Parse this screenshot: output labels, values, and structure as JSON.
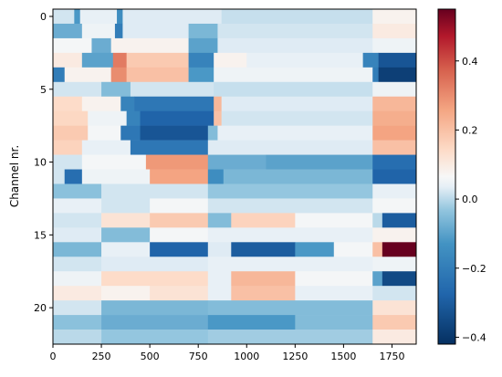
{
  "chart_data": {
    "type": "heatmap",
    "title": "",
    "xlabel": "",
    "ylabel": "Channel nr.",
    "xlim": [
      0,
      1875
    ],
    "ylim": [
      22.5,
      -0.5
    ],
    "x_ticks": [
      0,
      250,
      500,
      750,
      1000,
      1250,
      1500,
      1750
    ],
    "y_ticks": [
      0,
      5,
      10,
      15,
      20
    ],
    "colorbar": {
      "colormap": "RdBu_r",
      "vmin": -0.42,
      "vmax": 0.55,
      "ticks": [
        0.4,
        0.2,
        0.0,
        -0.2,
        -0.4
      ],
      "tick_labels": [
        "0.4",
        "0.2",
        "0.0",
        "−0.2",
        "−0.4"
      ]
    },
    "rows": [
      {
        "channel": 0,
        "segments": [
          [
            0,
            110,
            0.02
          ],
          [
            110,
            140,
            -0.12
          ],
          [
            140,
            330,
            0.04
          ],
          [
            330,
            360,
            -0.15
          ],
          [
            360,
            870,
            0.03
          ],
          [
            870,
            1650,
            0.01
          ],
          [
            1650,
            1875,
            0.08
          ]
        ]
      },
      {
        "channel": 1,
        "segments": [
          [
            0,
            150,
            -0.08
          ],
          [
            150,
            320,
            0.05
          ],
          [
            320,
            360,
            -0.2
          ],
          [
            360,
            700,
            0.03
          ],
          [
            700,
            850,
            -0.06
          ],
          [
            850,
            1650,
            0.02
          ],
          [
            1650,
            1875,
            0.1
          ]
        ]
      },
      {
        "channel": 2,
        "segments": [
          [
            0,
            200,
            0.06
          ],
          [
            200,
            300,
            -0.08
          ],
          [
            300,
            700,
            0.08
          ],
          [
            700,
            850,
            -0.1
          ],
          [
            850,
            1650,
            0.03
          ],
          [
            1650,
            1875,
            0.05
          ]
        ]
      },
      {
        "channel": 3,
        "segments": [
          [
            0,
            150,
            0.1
          ],
          [
            150,
            310,
            -0.1
          ],
          [
            310,
            380,
            0.33
          ],
          [
            380,
            700,
            0.18
          ],
          [
            700,
            830,
            -0.18
          ],
          [
            830,
            1000,
            0.08
          ],
          [
            1000,
            1600,
            0.04
          ],
          [
            1600,
            1680,
            -0.18
          ],
          [
            1680,
            1875,
            -0.32
          ]
        ]
      },
      {
        "channel": 4,
        "segments": [
          [
            0,
            60,
            -0.2
          ],
          [
            60,
            300,
            0.08
          ],
          [
            300,
            380,
            0.3
          ],
          [
            380,
            700,
            0.2
          ],
          [
            700,
            830,
            -0.12
          ],
          [
            830,
            1650,
            0.05
          ],
          [
            1650,
            1680,
            -0.2
          ],
          [
            1680,
            1875,
            -0.38
          ]
        ]
      },
      {
        "channel": 5,
        "segments": [
          [
            0,
            250,
            0.02
          ],
          [
            250,
            400,
            -0.05
          ],
          [
            400,
            830,
            0.02
          ],
          [
            830,
            1650,
            0.01
          ],
          [
            1650,
            1875,
            0.05
          ]
        ]
      },
      {
        "channel": 6,
        "segments": [
          [
            0,
            150,
            0.14
          ],
          [
            150,
            350,
            0.08
          ],
          [
            350,
            420,
            -0.18
          ],
          [
            420,
            830,
            -0.22
          ],
          [
            830,
            870,
            0.22
          ],
          [
            870,
            1650,
            0.03
          ],
          [
            1650,
            1875,
            0.22
          ]
        ]
      },
      {
        "channel": 7,
        "segments": [
          [
            0,
            180,
            0.15
          ],
          [
            180,
            380,
            0.05
          ],
          [
            380,
            450,
            -0.18
          ],
          [
            450,
            830,
            -0.28
          ],
          [
            830,
            870,
            0.2
          ],
          [
            870,
            1650,
            0.02
          ],
          [
            1650,
            1875,
            0.24
          ]
        ]
      },
      {
        "channel": 8,
        "segments": [
          [
            0,
            180,
            0.18
          ],
          [
            180,
            350,
            0.06
          ],
          [
            350,
            450,
            -0.22
          ],
          [
            450,
            800,
            -0.32
          ],
          [
            800,
            850,
            -0.05
          ],
          [
            850,
            1650,
            0.04
          ],
          [
            1650,
            1875,
            0.26
          ]
        ]
      },
      {
        "channel": 9,
        "segments": [
          [
            0,
            150,
            0.16
          ],
          [
            150,
            400,
            0.04
          ],
          [
            400,
            800,
            -0.22
          ],
          [
            800,
            1650,
            0.03
          ],
          [
            1650,
            1875,
            0.2
          ]
        ]
      },
      {
        "channel": 10,
        "segments": [
          [
            0,
            150,
            0.02
          ],
          [
            150,
            480,
            0.06
          ],
          [
            480,
            800,
            0.28
          ],
          [
            800,
            1100,
            -0.08
          ],
          [
            1100,
            1650,
            -0.1
          ],
          [
            1650,
            1875,
            -0.25
          ]
        ]
      },
      {
        "channel": 11,
        "segments": [
          [
            0,
            60,
            0.02
          ],
          [
            60,
            150,
            -0.25
          ],
          [
            150,
            500,
            0.05
          ],
          [
            500,
            800,
            0.26
          ],
          [
            800,
            880,
            -0.15
          ],
          [
            880,
            1650,
            -0.06
          ],
          [
            1650,
            1875,
            -0.28
          ]
        ]
      },
      {
        "channel": 12,
        "segments": [
          [
            0,
            250,
            -0.04
          ],
          [
            250,
            800,
            0.02
          ],
          [
            800,
            1650,
            -0.03
          ],
          [
            1650,
            1875,
            0.04
          ]
        ]
      },
      {
        "channel": 13,
        "segments": [
          [
            0,
            250,
            0.04
          ],
          [
            250,
            500,
            0.02
          ],
          [
            500,
            800,
            0.06
          ],
          [
            800,
            1650,
            0.02
          ],
          [
            1650,
            1875,
            0.06
          ]
        ]
      },
      {
        "channel": 14,
        "segments": [
          [
            0,
            250,
            0.02
          ],
          [
            250,
            500,
            0.12
          ],
          [
            500,
            800,
            0.18
          ],
          [
            800,
            920,
            -0.05
          ],
          [
            920,
            1250,
            0.16
          ],
          [
            1250,
            1650,
            0.06
          ],
          [
            1650,
            1700,
            0.0
          ],
          [
            1700,
            1875,
            -0.3
          ]
        ]
      },
      {
        "channel": 15,
        "segments": [
          [
            0,
            250,
            0.03
          ],
          [
            250,
            500,
            -0.05
          ],
          [
            500,
            800,
            0.06
          ],
          [
            800,
            1650,
            0.04
          ],
          [
            1650,
            1875,
            0.08
          ]
        ]
      },
      {
        "channel": 16,
        "segments": [
          [
            0,
            250,
            -0.06
          ],
          [
            250,
            500,
            0.04
          ],
          [
            500,
            800,
            -0.28
          ],
          [
            800,
            920,
            0.03
          ],
          [
            920,
            1250,
            -0.3
          ],
          [
            1250,
            1450,
            -0.12
          ],
          [
            1450,
            1650,
            0.06
          ],
          [
            1650,
            1700,
            0.2
          ],
          [
            1700,
            1875,
            0.55
          ]
        ]
      },
      {
        "channel": 17,
        "segments": [
          [
            0,
            250,
            0.02
          ],
          [
            250,
            800,
            0.03
          ],
          [
            800,
            1650,
            0.04
          ],
          [
            1650,
            1875,
            0.05
          ]
        ]
      },
      {
        "channel": 18,
        "segments": [
          [
            0,
            250,
            0.05
          ],
          [
            250,
            800,
            0.14
          ],
          [
            800,
            920,
            0.04
          ],
          [
            920,
            1250,
            0.22
          ],
          [
            1250,
            1650,
            0.06
          ],
          [
            1650,
            1700,
            -0.1
          ],
          [
            1700,
            1875,
            -0.35
          ]
        ]
      },
      {
        "channel": 19,
        "segments": [
          [
            0,
            250,
            0.1
          ],
          [
            250,
            500,
            0.08
          ],
          [
            500,
            800,
            0.12
          ],
          [
            800,
            920,
            0.04
          ],
          [
            920,
            1250,
            0.2
          ],
          [
            1250,
            1650,
            0.04
          ],
          [
            1650,
            1875,
            0.02
          ]
        ]
      },
      {
        "channel": 20,
        "segments": [
          [
            0,
            250,
            0.02
          ],
          [
            250,
            800,
            -0.06
          ],
          [
            800,
            1650,
            -0.05
          ],
          [
            1650,
            1875,
            0.12
          ]
        ]
      },
      {
        "channel": 21,
        "segments": [
          [
            0,
            250,
            -0.04
          ],
          [
            250,
            800,
            -0.08
          ],
          [
            800,
            1250,
            -0.12
          ],
          [
            1250,
            1650,
            -0.05
          ],
          [
            1650,
            1875,
            0.18
          ]
        ]
      },
      {
        "channel": 22,
        "segments": [
          [
            0,
            250,
            0.0
          ],
          [
            250,
            800,
            -0.03
          ],
          [
            800,
            1650,
            -0.02
          ],
          [
            1650,
            1875,
            0.1
          ]
        ]
      }
    ]
  }
}
